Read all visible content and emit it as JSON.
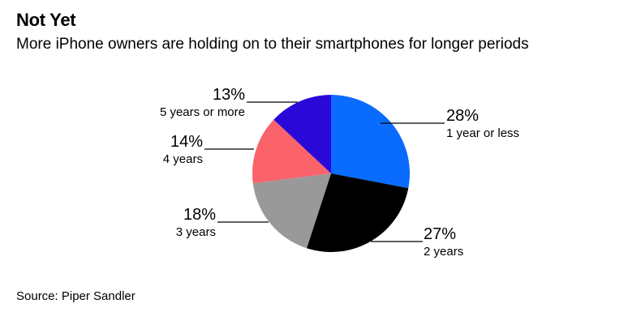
{
  "header": {
    "title": "Not Yet",
    "subtitle": "More iPhone owners are holding on to their smartphones for longer periods"
  },
  "footer": {
    "source": "Source: Piper Sandler"
  },
  "chart_data": {
    "type": "pie",
    "title": "Not Yet",
    "subtitle": "More iPhone owners are holding on to their smartphones for longer periods",
    "slices": [
      {
        "label": "1 year or less",
        "value": 28,
        "value_label": "28%",
        "color": "#0a6cff"
      },
      {
        "label": "2 years",
        "value": 27,
        "value_label": "27%",
        "color": "#000000"
      },
      {
        "label": "3 years",
        "value": 18,
        "value_label": "18%",
        "color": "#999999"
      },
      {
        "label": "4 years",
        "value": 14,
        "value_label": "14%",
        "color": "#fb636b"
      },
      {
        "label": "5 years or more",
        "value": 13,
        "value_label": "13%",
        "color": "#2a09d8"
      }
    ],
    "start": "12 o'clock",
    "direction": "clockwise",
    "legend": "none (direct labels with leader lines)"
  }
}
